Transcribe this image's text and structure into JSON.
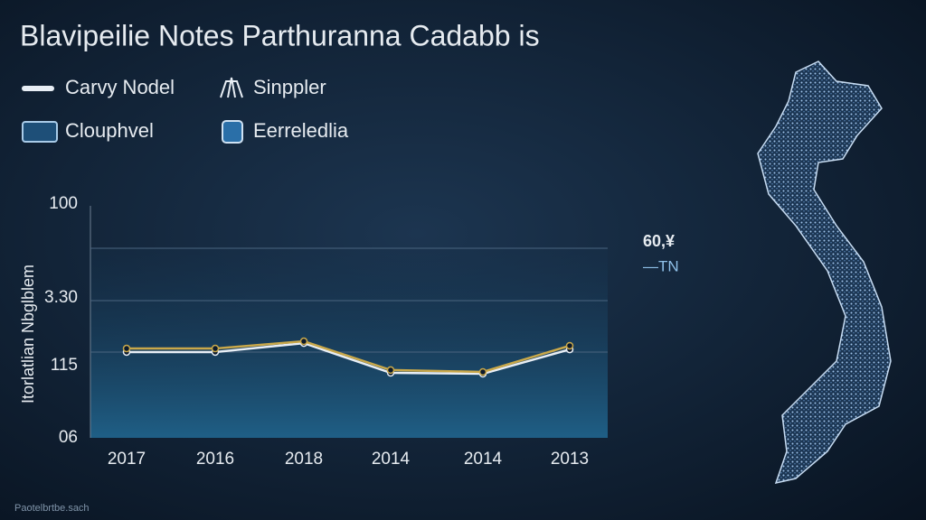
{
  "chart_data": {
    "type": "line",
    "title": "Blavipeilie Notes Parthuranna Cadabb is",
    "y_label": "Itorlatlian Nbglblem",
    "y_axis_labels": [
      "100",
      "3.30",
      "115",
      "06"
    ],
    "categories": [
      "2017",
      "2016",
      "2018",
      "2014",
      "2014",
      "2013"
    ],
    "ylim": [
      0,
      100
    ],
    "series": [
      {
        "name": "Carvy Nodel",
        "color": "#e8eef5",
        "values": [
          36.7,
          36.7,
          40.5,
          27.8,
          27.4,
          37.8
        ]
      },
      {
        "name": "Sinppler",
        "color": "#c9a84a",
        "values": [
          38.2,
          38.2,
          41.3,
          29,
          28.2,
          39.4
        ]
      }
    ],
    "legend_extra": [
      "Clouphvel",
      "Eerreledlia"
    ],
    "annotation": "60,¥",
    "annotation_sub": "—TN",
    "footer": "Paotelbrtbe.sach"
  }
}
